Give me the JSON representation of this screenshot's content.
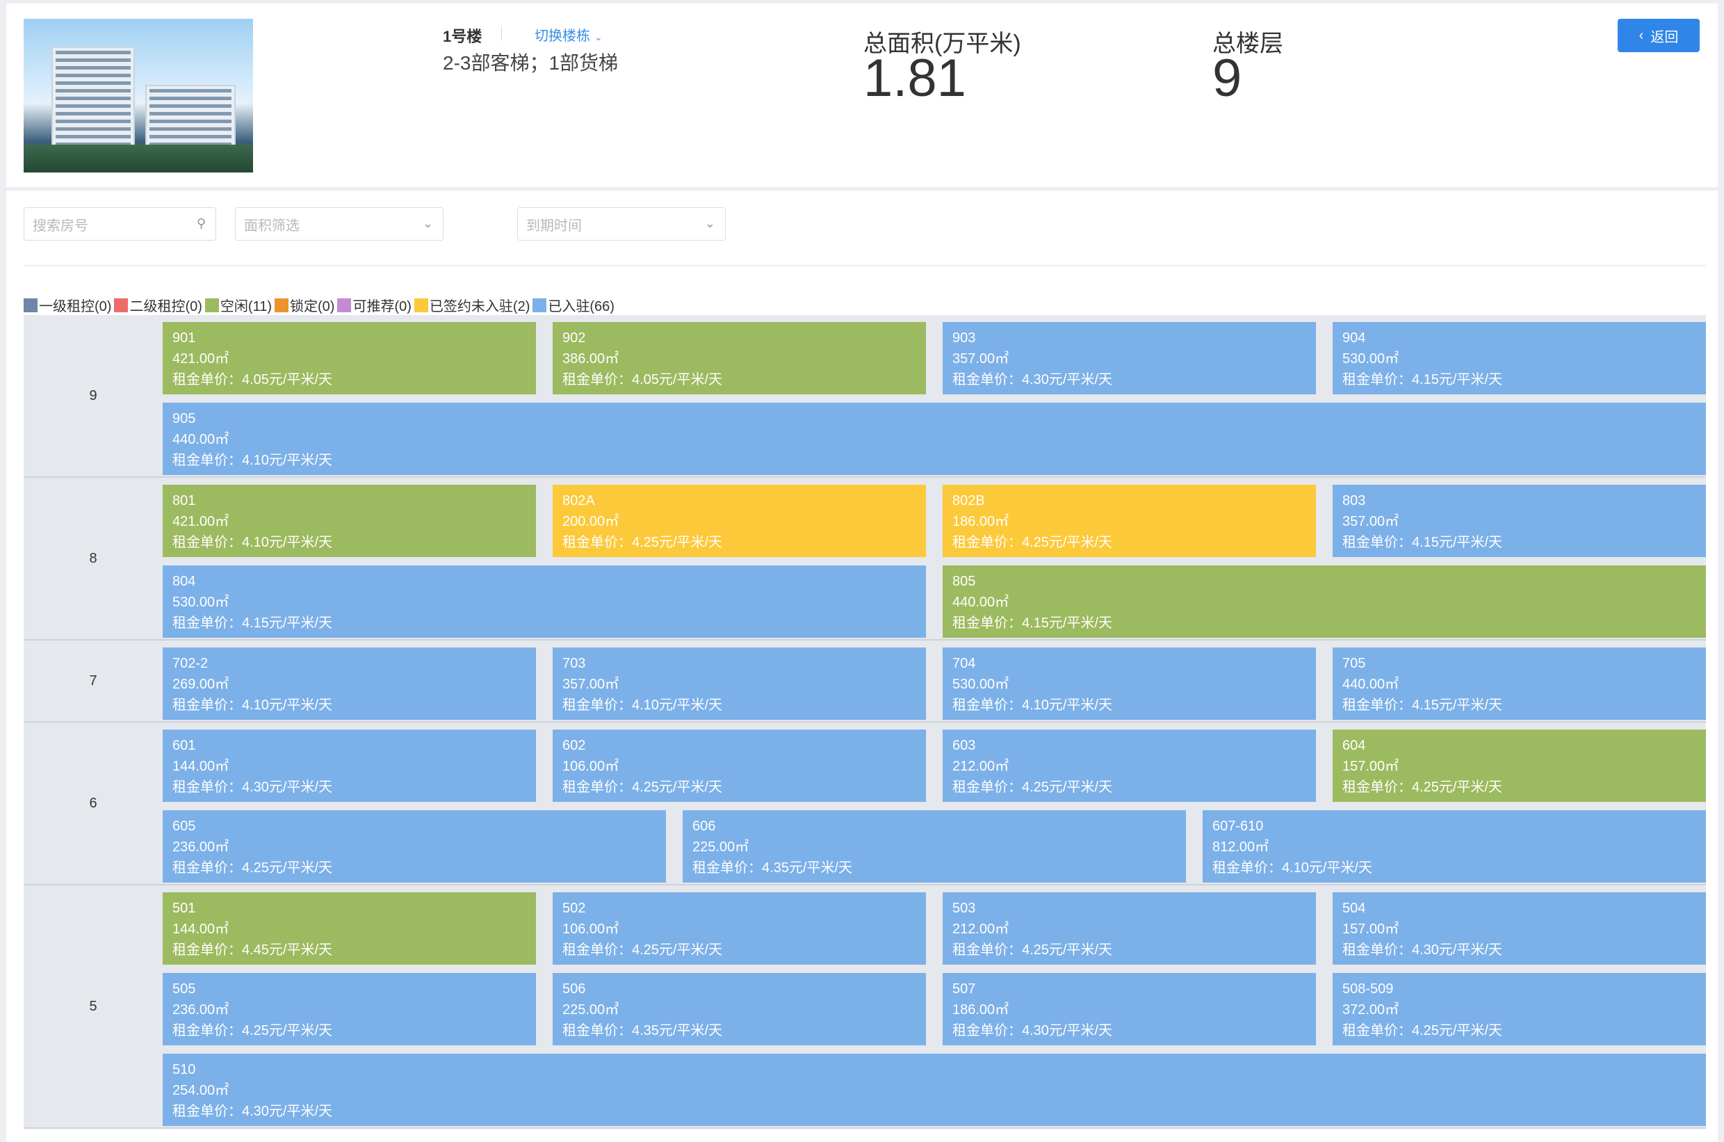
{
  "header": {
    "building_name": "1号楼",
    "switch_label": "切换楼栋",
    "elevator_info": "2-3部客梯；1部货梯",
    "total_area_label": "总面积(万平米)",
    "total_area_value": "1.81",
    "total_floors_label": "总楼层",
    "total_floors_value": "9",
    "back_label": "返回"
  },
  "filters": {
    "search_placeholder": "搜索房号",
    "area_placeholder": "面积筛选",
    "expiry_placeholder": "到期时间"
  },
  "legend": [
    {
      "label": "一级租控(0)",
      "color": "#6f86a6"
    },
    {
      "label": "二级租控(0)",
      "color": "#ee6b6b"
    },
    {
      "label": "空闲(11)",
      "color": "#9cba5f"
    },
    {
      "label": "锁定(0)",
      "color": "#ee922f"
    },
    {
      "label": "可推荐(0)",
      "color": "#c48bd1"
    },
    {
      "label": "已签约未入驻(2)",
      "color": "#fcc93a"
    },
    {
      "label": "已入驻(66)",
      "color": "#7cb0e8"
    }
  ],
  "colors": {
    "vacant": "#9cba5f",
    "signed": "#fcc93a",
    "occupied": "#7cb0e8"
  },
  "rent_prefix": "租金单价：",
  "floors": [
    {
      "floor": "9",
      "rows": [
        [
          {
            "room": "901",
            "area": "421.00㎡",
            "rent": "4.05元/平米/天",
            "status": "vacant"
          },
          {
            "room": "902",
            "area": "386.00㎡",
            "rent": "4.05元/平米/天",
            "status": "vacant"
          },
          {
            "room": "903",
            "area": "357.00㎡",
            "rent": "4.30元/平米/天",
            "status": "occupied"
          },
          {
            "room": "904",
            "area": "530.00㎡",
            "rent": "4.15元/平米/天",
            "status": "occupied"
          }
        ],
        [
          {
            "room": "905",
            "area": "440.00㎡",
            "rent": "4.10元/平米/天",
            "status": "occupied"
          }
        ]
      ]
    },
    {
      "floor": "8",
      "rows": [
        [
          {
            "room": "801",
            "area": "421.00㎡",
            "rent": "4.10元/平米/天",
            "status": "vacant"
          },
          {
            "room": "802A",
            "area": "200.00㎡",
            "rent": "4.25元/平米/天",
            "status": "signed"
          },
          {
            "room": "802B",
            "area": "186.00㎡",
            "rent": "4.25元/平米/天",
            "status": "signed"
          },
          {
            "room": "803",
            "area": "357.00㎡",
            "rent": "4.15元/平米/天",
            "status": "occupied"
          }
        ],
        [
          {
            "room": "804",
            "area": "530.00㎡",
            "rent": "4.15元/平米/天",
            "status": "occupied"
          },
          {
            "room": "805",
            "area": "440.00㎡",
            "rent": "4.15元/平米/天",
            "status": "vacant"
          }
        ]
      ]
    },
    {
      "floor": "7",
      "rows": [
        [
          {
            "room": "702-2",
            "area": "269.00㎡",
            "rent": "4.10元/平米/天",
            "status": "occupied"
          },
          {
            "room": "703",
            "area": "357.00㎡",
            "rent": "4.10元/平米/天",
            "status": "occupied"
          },
          {
            "room": "704",
            "area": "530.00㎡",
            "rent": "4.10元/平米/天",
            "status": "occupied"
          },
          {
            "room": "705",
            "area": "440.00㎡",
            "rent": "4.15元/平米/天",
            "status": "occupied"
          }
        ]
      ]
    },
    {
      "floor": "6",
      "rows": [
        [
          {
            "room": "601",
            "area": "144.00㎡",
            "rent": "4.30元/平米/天",
            "status": "occupied"
          },
          {
            "room": "602",
            "area": "106.00㎡",
            "rent": "4.25元/平米/天",
            "status": "occupied"
          },
          {
            "room": "603",
            "area": "212.00㎡",
            "rent": "4.25元/平米/天",
            "status": "occupied"
          },
          {
            "room": "604",
            "area": "157.00㎡",
            "rent": "4.25元/平米/天",
            "status": "vacant"
          }
        ],
        [
          {
            "room": "605",
            "area": "236.00㎡",
            "rent": "4.25元/平米/天",
            "status": "occupied"
          },
          {
            "room": "606",
            "area": "225.00㎡",
            "rent": "4.35元/平米/天",
            "status": "occupied"
          },
          {
            "room": "607-610",
            "area": "812.00㎡",
            "rent": "4.10元/平米/天",
            "status": "occupied"
          }
        ]
      ]
    },
    {
      "floor": "5",
      "rows": [
        [
          {
            "room": "501",
            "area": "144.00㎡",
            "rent": "4.45元/平米/天",
            "status": "vacant"
          },
          {
            "room": "502",
            "area": "106.00㎡",
            "rent": "4.25元/平米/天",
            "status": "occupied"
          },
          {
            "room": "503",
            "area": "212.00㎡",
            "rent": "4.25元/平米/天",
            "status": "occupied"
          },
          {
            "room": "504",
            "area": "157.00㎡",
            "rent": "4.30元/平米/天",
            "status": "occupied"
          }
        ],
        [
          {
            "room": "505",
            "area": "236.00㎡",
            "rent": "4.25元/平米/天",
            "status": "occupied"
          },
          {
            "room": "506",
            "area": "225.00㎡",
            "rent": "4.35元/平米/天",
            "status": "occupied"
          },
          {
            "room": "507",
            "area": "186.00㎡",
            "rent": "4.30元/平米/天",
            "status": "occupied"
          },
          {
            "room": "508-509",
            "area": "372.00㎡",
            "rent": "4.25元/平米/天",
            "status": "occupied"
          }
        ],
        [
          {
            "room": "510",
            "area": "254.00㎡",
            "rent": "4.30元/平米/天",
            "status": "occupied"
          }
        ]
      ]
    }
  ]
}
